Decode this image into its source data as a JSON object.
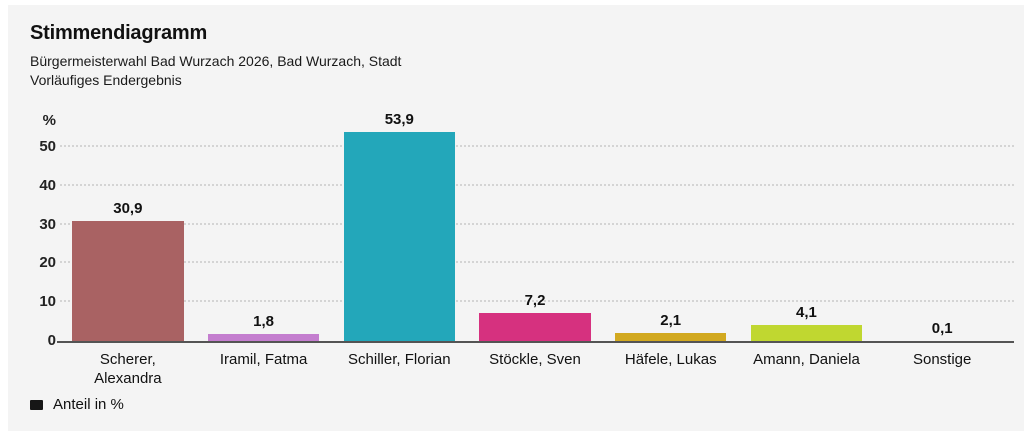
{
  "header": {
    "title": "Stimmendiagramm",
    "subtitle_lines": [
      "Bürgermeisterwahl Bad Wurzach 2026, Bad Wurzach, Stadt",
      "Vorläufiges Endergebnis"
    ]
  },
  "chart_data": {
    "type": "bar",
    "title": "Stimmendiagramm",
    "subtitle_lines": [
      "Bürgermeisterwahl Bad Wurzach 2026, Bad Wurzach, Stadt",
      "Vorläufiges Endergebnis"
    ],
    "unit": "%",
    "categories": [
      "Scherer, Alexandra",
      "Iramil, Fatma",
      "Schiller, Florian",
      "Stöckle, Sven",
      "Häfele, Lukas",
      "Amann, Daniela",
      "Sonstige"
    ],
    "values": [
      30.9,
      1.8,
      53.9,
      7.2,
      2.1,
      4.1,
      0.1
    ],
    "value_labels": [
      "30,9",
      "1,8",
      "53,9",
      "7,2",
      "2,1",
      "4,1",
      "0,1"
    ],
    "bar_colors": [
      "#a96263",
      "#c47ecf",
      "#23a7ba",
      "#d6317f",
      "#d2a920",
      "#c0d730",
      "#9e9e9e"
    ],
    "xlabel": "",
    "ylabel": "%",
    "yticks": [
      0,
      10,
      20,
      30,
      40,
      50
    ],
    "ylim": [
      0,
      59
    ],
    "grid": "horizontal-dotted",
    "legend": {
      "label": "Anteil in %",
      "swatch_color": "#161616",
      "position": "bottom-left"
    },
    "background_color": "#f4f4f4"
  }
}
